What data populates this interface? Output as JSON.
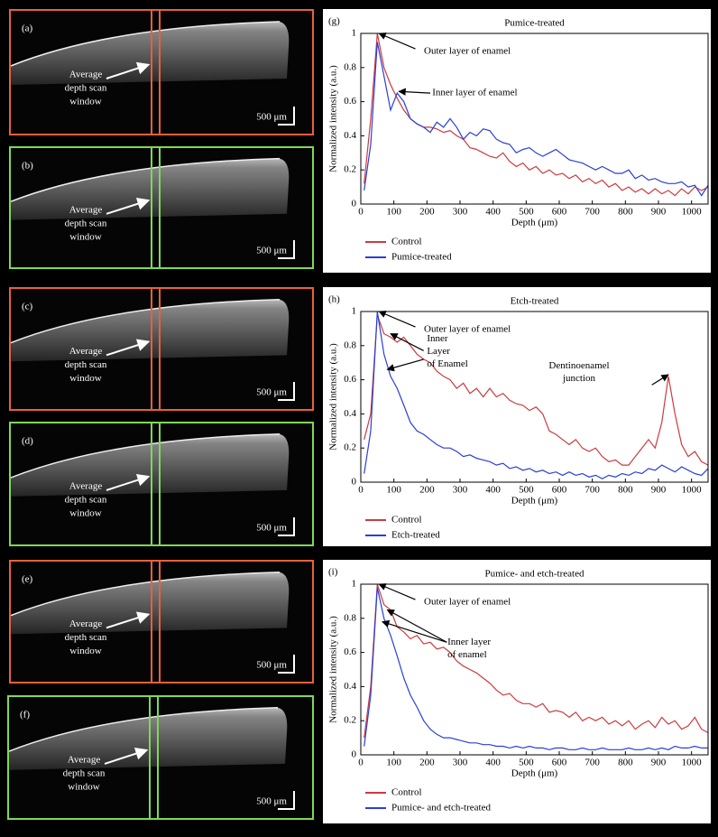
{
  "panels": [
    {
      "label": "(a)",
      "caption": [
        "Average",
        "depth scan",
        "window"
      ],
      "scale": "500 μm",
      "color": "#e8603c"
    },
    {
      "label": "(b)",
      "caption": [
        "Average",
        "depth scan",
        "window"
      ],
      "scale": "500 μm",
      "color": "#7ed957"
    },
    {
      "label": "(c)",
      "caption": [
        "Average",
        "depth scan",
        "window"
      ],
      "scale": "500 μm",
      "color": "#e8603c"
    },
    {
      "label": "(d)",
      "caption": [
        "Average",
        "depth scan",
        "window"
      ],
      "scale": "500 μm",
      "color": "#7ed957"
    },
    {
      "label": "(e)",
      "caption": [
        "Average",
        "depth scan",
        "window"
      ],
      "scale": "500 μm",
      "color": "#e8603c"
    },
    {
      "label": "(f)",
      "caption": [
        "Average",
        "depth scan",
        "window"
      ],
      "scale": "500 μm",
      "color": "#7ed957"
    }
  ],
  "chart_data": [
    {
      "type": "line",
      "label": "(g)",
      "title": "Pumice-treated",
      "x_label": "Depth (μm)",
      "y_label": "Normalized intensity (a.u.)",
      "xlim": [
        0,
        1050
      ],
      "ylim": [
        0,
        1
      ],
      "xticks": [
        0,
        100,
        200,
        300,
        400,
        500,
        600,
        700,
        800,
        900,
        1000
      ],
      "yticks": [
        0,
        0.2,
        0.4,
        0.6,
        0.8,
        1
      ],
      "annotations": [
        [
          "Outer layer of enamel"
        ],
        [
          "Inner layer of enamel"
        ]
      ],
      "x": [
        10,
        30,
        50,
        70,
        90,
        110,
        130,
        150,
        170,
        190,
        210,
        230,
        250,
        270,
        290,
        310,
        330,
        350,
        370,
        390,
        410,
        430,
        450,
        470,
        490,
        510,
        530,
        550,
        570,
        590,
        610,
        630,
        650,
        670,
        690,
        710,
        730,
        750,
        770,
        790,
        810,
        830,
        850,
        870,
        890,
        910,
        930,
        950,
        970,
        990,
        1010,
        1030,
        1050
      ],
      "series": [
        {
          "name": "Control",
          "color": "#cc3a3f",
          "values": [
            0.12,
            0.5,
            1.0,
            0.8,
            0.7,
            0.62,
            0.55,
            0.5,
            0.47,
            0.45,
            0.45,
            0.44,
            0.42,
            0.43,
            0.4,
            0.38,
            0.33,
            0.32,
            0.3,
            0.28,
            0.27,
            0.3,
            0.25,
            0.22,
            0.24,
            0.2,
            0.22,
            0.18,
            0.2,
            0.17,
            0.18,
            0.15,
            0.17,
            0.13,
            0.15,
            0.12,
            0.14,
            0.1,
            0.12,
            0.08,
            0.1,
            0.07,
            0.09,
            0.06,
            0.09,
            0.06,
            0.08,
            0.05,
            0.09,
            0.06,
            0.1,
            0.08,
            0.1
          ]
        },
        {
          "name": "Pumice-treated",
          "color": "#2b3fd6",
          "values": [
            0.08,
            0.35,
            0.95,
            0.75,
            0.55,
            0.65,
            0.6,
            0.5,
            0.47,
            0.45,
            0.42,
            0.48,
            0.45,
            0.5,
            0.45,
            0.38,
            0.42,
            0.4,
            0.44,
            0.43,
            0.38,
            0.36,
            0.35,
            0.3,
            0.32,
            0.33,
            0.3,
            0.28,
            0.3,
            0.32,
            0.29,
            0.26,
            0.25,
            0.24,
            0.22,
            0.2,
            0.22,
            0.2,
            0.18,
            0.18,
            0.2,
            0.15,
            0.17,
            0.14,
            0.15,
            0.13,
            0.12,
            0.12,
            0.13,
            0.1,
            0.11,
            0.05,
            0.11
          ]
        }
      ]
    },
    {
      "type": "line",
      "label": "(h)",
      "title": "Etch-treated",
      "x_label": "Depth (μm)",
      "y_label": "Normalized intensity (a.u.)",
      "xlim": [
        0,
        1050
      ],
      "ylim": [
        0,
        1
      ],
      "xticks": [
        0,
        100,
        200,
        300,
        400,
        500,
        600,
        700,
        800,
        900,
        1000
      ],
      "yticks": [
        0,
        0.2,
        0.4,
        0.6,
        0.8,
        1
      ],
      "annotations": [
        [
          "Outer layer of enamel"
        ],
        [
          "Inner",
          "Layer",
          "of Enamel"
        ],
        [
          "Dentinoenamel",
          "junction"
        ]
      ],
      "x": [
        10,
        30,
        50,
        70,
        90,
        110,
        130,
        150,
        170,
        190,
        210,
        230,
        250,
        270,
        290,
        310,
        330,
        350,
        370,
        390,
        410,
        430,
        450,
        470,
        490,
        510,
        530,
        550,
        570,
        590,
        610,
        630,
        650,
        670,
        690,
        710,
        730,
        750,
        770,
        790,
        810,
        830,
        850,
        870,
        890,
        910,
        930,
        950,
        970,
        990,
        1010,
        1030,
        1050
      ],
      "series": [
        {
          "name": "Control",
          "color": "#cc3a3f",
          "values": [
            0.25,
            0.4,
            0.98,
            0.87,
            0.85,
            0.82,
            0.85,
            0.8,
            0.75,
            0.72,
            0.7,
            0.65,
            0.62,
            0.6,
            0.55,
            0.58,
            0.52,
            0.55,
            0.5,
            0.55,
            0.5,
            0.52,
            0.48,
            0.46,
            0.45,
            0.42,
            0.44,
            0.4,
            0.3,
            0.28,
            0.25,
            0.22,
            0.25,
            0.2,
            0.18,
            0.2,
            0.15,
            0.12,
            0.13,
            0.1,
            0.1,
            0.15,
            0.2,
            0.25,
            0.2,
            0.35,
            0.62,
            0.4,
            0.22,
            0.15,
            0.18,
            0.12,
            0.1
          ]
        },
        {
          "name": "Etch-treated",
          "color": "#2b3fd6",
          "values": [
            0.05,
            0.3,
            1.0,
            0.75,
            0.62,
            0.55,
            0.45,
            0.35,
            0.3,
            0.28,
            0.25,
            0.22,
            0.2,
            0.2,
            0.18,
            0.15,
            0.16,
            0.14,
            0.13,
            0.12,
            0.1,
            0.11,
            0.08,
            0.09,
            0.07,
            0.08,
            0.06,
            0.07,
            0.05,
            0.06,
            0.04,
            0.06,
            0.04,
            0.05,
            0.03,
            0.04,
            0.02,
            0.04,
            0.03,
            0.05,
            0.04,
            0.06,
            0.05,
            0.08,
            0.07,
            0.1,
            0.08,
            0.06,
            0.09,
            0.07,
            0.05,
            0.04,
            0.08
          ]
        }
      ]
    },
    {
      "type": "line",
      "label": "(i)",
      "title": "Pumice- and etch-treated",
      "x_label": "Depth (μm)",
      "y_label": "Normalized intensity (a.u.)",
      "xlim": [
        0,
        1050
      ],
      "ylim": [
        0,
        1
      ],
      "xticks": [
        0,
        100,
        200,
        300,
        400,
        500,
        600,
        700,
        800,
        900,
        1000
      ],
      "yticks": [
        0,
        0.2,
        0.4,
        0.6,
        0.8,
        1
      ],
      "annotations": [
        [
          "Outer layer of enamel"
        ],
        [
          "Inner layer",
          "of enamel"
        ]
      ],
      "x": [
        10,
        30,
        50,
        70,
        90,
        110,
        130,
        150,
        170,
        190,
        210,
        230,
        250,
        270,
        290,
        310,
        330,
        350,
        370,
        390,
        410,
        430,
        450,
        470,
        490,
        510,
        530,
        550,
        570,
        590,
        610,
        630,
        650,
        670,
        690,
        710,
        730,
        750,
        770,
        790,
        810,
        830,
        850,
        870,
        890,
        910,
        930,
        950,
        970,
        990,
        1010,
        1030,
        1050
      ],
      "series": [
        {
          "name": "Control",
          "color": "#cc3a3f",
          "values": [
            0.1,
            0.4,
            1.0,
            0.88,
            0.85,
            0.75,
            0.72,
            0.68,
            0.7,
            0.65,
            0.66,
            0.62,
            0.63,
            0.6,
            0.55,
            0.52,
            0.5,
            0.48,
            0.45,
            0.42,
            0.38,
            0.35,
            0.36,
            0.32,
            0.3,
            0.3,
            0.28,
            0.3,
            0.25,
            0.26,
            0.25,
            0.22,
            0.25,
            0.2,
            0.22,
            0.2,
            0.22,
            0.18,
            0.2,
            0.17,
            0.2,
            0.15,
            0.18,
            0.2,
            0.16,
            0.22,
            0.18,
            0.2,
            0.15,
            0.17,
            0.22,
            0.15,
            0.13
          ]
        },
        {
          "name": "Pumice- and etch-treated",
          "color": "#2b3fd6",
          "values": [
            0.05,
            0.35,
            0.98,
            0.8,
            0.7,
            0.58,
            0.45,
            0.35,
            0.28,
            0.2,
            0.15,
            0.12,
            0.1,
            0.1,
            0.09,
            0.08,
            0.07,
            0.07,
            0.06,
            0.06,
            0.05,
            0.05,
            0.04,
            0.05,
            0.04,
            0.05,
            0.04,
            0.04,
            0.03,
            0.04,
            0.04,
            0.03,
            0.03,
            0.04,
            0.03,
            0.03,
            0.04,
            0.03,
            0.03,
            0.03,
            0.04,
            0.03,
            0.03,
            0.04,
            0.03,
            0.04,
            0.03,
            0.05,
            0.04,
            0.04,
            0.05,
            0.04,
            0.04
          ]
        }
      ]
    }
  ]
}
